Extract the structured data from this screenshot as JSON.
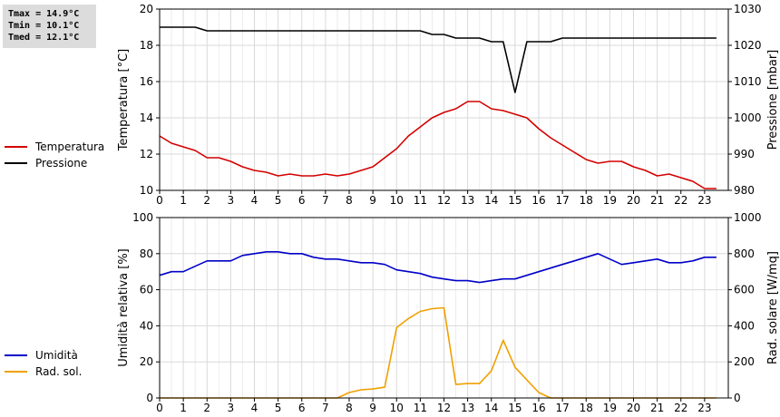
{
  "stats": {
    "tmax": "Tmax = 14.9°C",
    "tmin": "Tmin = 10.1°C",
    "tmed": "Tmed = 12.1°C"
  },
  "colors": {
    "temperature": "#d40000",
    "pressure": "#000000",
    "humidity": "#0000c8",
    "radiation": "#f0a000",
    "grid": "#d9d9d9"
  },
  "chart_data": [
    {
      "type": "line",
      "x_ticks": [
        "0",
        "1",
        "2",
        "3",
        "4",
        "5",
        "6",
        "7",
        "8",
        "9",
        "10",
        "11",
        "12",
        "13",
        "14",
        "15",
        "16",
        "17",
        "18",
        "19",
        "20",
        "21",
        "22",
        "23"
      ],
      "xlim": [
        0,
        24
      ],
      "ylabel": "Temperatura [°C]",
      "ylim": [
        10,
        20
      ],
      "y_ticks": [
        "10",
        "12",
        "14",
        "16",
        "18",
        "20"
      ],
      "y2label": "Pressione [mbar]",
      "y2lim": [
        980,
        1030
      ],
      "y2_ticks": [
        "980",
        "990",
        "1000",
        "1010",
        "1020",
        "1030"
      ],
      "grid": true,
      "legend_position": "left",
      "series": [
        {
          "name": "Temperatura",
          "axis": "left",
          "x": [
            0,
            0.5,
            1,
            1.5,
            2,
            2.5,
            3,
            3.5,
            4,
            4.5,
            5,
            5.5,
            6,
            6.5,
            7,
            7.5,
            8,
            8.5,
            9,
            9.5,
            10,
            10.5,
            11,
            11.5,
            12,
            12.5,
            13,
            13.5,
            14,
            14.5,
            15,
            15.5,
            16,
            16.5,
            17,
            17.5,
            18,
            18.5,
            19,
            19.5,
            20,
            20.5,
            21,
            21.5,
            22,
            22.5,
            23,
            23.5
          ],
          "values": [
            13.0,
            12.6,
            12.4,
            12.2,
            11.8,
            11.8,
            11.6,
            11.3,
            11.1,
            11.0,
            10.8,
            10.9,
            10.8,
            10.8,
            10.9,
            10.8,
            10.9,
            11.1,
            11.3,
            11.8,
            12.3,
            13.0,
            13.5,
            14.0,
            14.3,
            14.5,
            14.9,
            14.9,
            14.5,
            14.4,
            14.2,
            14.0,
            13.4,
            12.9,
            12.5,
            12.1,
            11.7,
            11.5,
            11.6,
            11.6,
            11.3,
            11.1,
            10.8,
            10.9,
            10.7,
            10.5,
            10.1,
            10.1
          ]
        },
        {
          "name": "Pressione",
          "axis": "right",
          "x": [
            0,
            1.5,
            2,
            2.5,
            11,
            11.5,
            12,
            12.5,
            13,
            13.5,
            14,
            14.5,
            15,
            15.5,
            16,
            16.5,
            17,
            23.5
          ],
          "values": [
            1025,
            1025,
            1024,
            1024,
            1024,
            1023,
            1023,
            1022,
            1022,
            1022,
            1021,
            1021,
            1007,
            1021,
            1021,
            1021,
            1022,
            1022
          ]
        }
      ]
    },
    {
      "type": "line",
      "x_ticks": [
        "0",
        "1",
        "2",
        "3",
        "4",
        "5",
        "6",
        "7",
        "8",
        "9",
        "10",
        "11",
        "12",
        "13",
        "14",
        "15",
        "16",
        "17",
        "18",
        "19",
        "20",
        "21",
        "22",
        "23"
      ],
      "xlim": [
        0,
        24
      ],
      "ylabel": "Umidità relativa [%]",
      "ylim": [
        0,
        100
      ],
      "y_ticks": [
        "0",
        "20",
        "40",
        "60",
        "80",
        "100"
      ],
      "y2label": "Rad. solare [W/mq]",
      "y2lim": [
        0,
        1000
      ],
      "y2_ticks": [
        "0",
        "200",
        "400",
        "600",
        "800",
        "1000"
      ],
      "grid": true,
      "legend_position": "left",
      "series": [
        {
          "name": "Umidità",
          "axis": "left",
          "x": [
            0,
            0.5,
            1,
            1.5,
            2,
            2.5,
            3,
            3.5,
            4,
            4.5,
            5,
            5.5,
            6,
            6.5,
            7,
            7.5,
            8,
            8.5,
            9,
            9.5,
            10,
            10.5,
            11,
            11.5,
            12,
            12.5,
            13,
            13.5,
            14,
            14.5,
            15,
            15.5,
            16,
            16.5,
            17,
            17.5,
            18,
            18.5,
            19,
            19.5,
            20,
            20.5,
            21,
            21.5,
            22,
            22.5,
            23,
            23.5
          ],
          "values": [
            68,
            70,
            70,
            73,
            76,
            76,
            76,
            79,
            80,
            81,
            81,
            80,
            80,
            78,
            77,
            77,
            76,
            75,
            75,
            74,
            71,
            70,
            69,
            67,
            66,
            65,
            65,
            64,
            65,
            66,
            66,
            68,
            70,
            72,
            74,
            76,
            78,
            80,
            77,
            74,
            75,
            76,
            77,
            75,
            75,
            76,
            78,
            78
          ]
        },
        {
          "name": "Rad. sol.",
          "axis": "right",
          "x": [
            0,
            7.5,
            8,
            8.5,
            9,
            9.5,
            10,
            10.5,
            11,
            11.5,
            12,
            12.5,
            13,
            13.5,
            14,
            14.5,
            15,
            15.5,
            16,
            16.5,
            17,
            23.5
          ],
          "values": [
            0,
            0,
            30,
            45,
            50,
            60,
            390,
            440,
            480,
            495,
            500,
            75,
            80,
            80,
            150,
            320,
            170,
            100,
            30,
            0,
            0,
            0
          ]
        }
      ]
    }
  ]
}
